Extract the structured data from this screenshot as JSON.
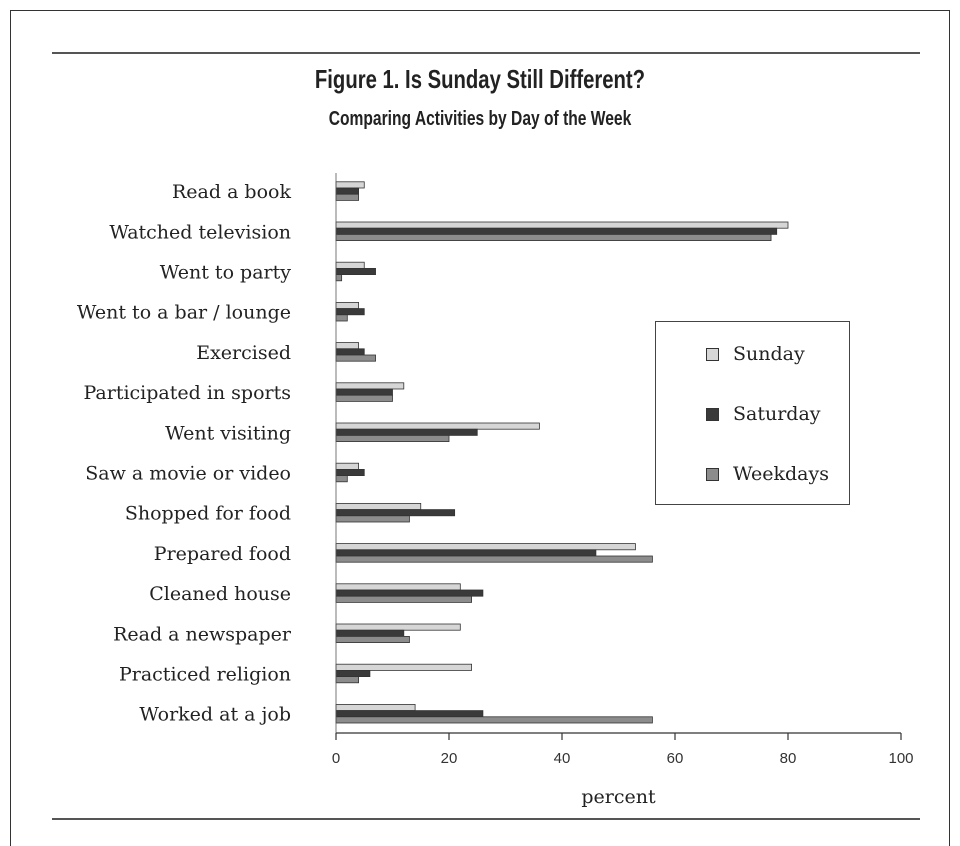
{
  "header": {
    "title": "Figure 1.  Is Sunday Still Different?",
    "subtitle": "Comparing Activities by Day of the Week"
  },
  "chart_data": {
    "type": "bar",
    "orientation": "horizontal",
    "categories": [
      "Read a book",
      "Watched television",
      "Went to party",
      "Went to a bar / lounge",
      "Exercised",
      "Participated in sports",
      "Went visiting",
      "Saw a movie or video",
      "Shopped for food",
      "Prepared food",
      "Cleaned house",
      "Read a newspaper",
      "Practiced religion",
      "Worked at a job"
    ],
    "series": [
      {
        "name": "Sunday",
        "color": "#d6d6d6",
        "values": [
          5,
          80,
          5,
          4,
          4,
          12,
          36,
          4,
          15,
          53,
          22,
          22,
          24,
          14
        ]
      },
      {
        "name": "Saturday",
        "color": "#3a3a3a",
        "values": [
          4,
          78,
          7,
          5,
          5,
          10,
          25,
          5,
          21,
          46,
          26,
          12,
          6,
          26
        ]
      },
      {
        "name": "Weekdays",
        "color": "#8c8c8c",
        "values": [
          4,
          77,
          1,
          2,
          7,
          10,
          20,
          2,
          13,
          56,
          24,
          13,
          4,
          56
        ]
      }
    ],
    "xlabel": "percent",
    "xlim": [
      0,
      100
    ],
    "xticks": [
      0,
      20,
      40,
      60,
      80,
      100
    ],
    "legend_position": "right",
    "grid": false
  }
}
